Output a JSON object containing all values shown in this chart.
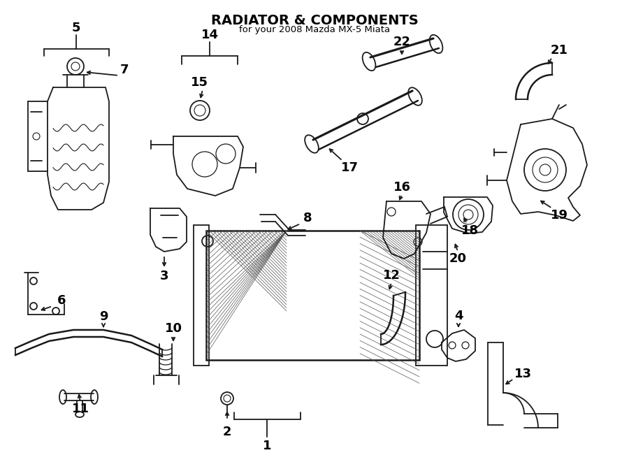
{
  "title": "RADIATOR & COMPONENTS",
  "subtitle": "for your 2008 Mazda MX-5 Miata",
  "bg_color": "#ffffff",
  "line_color": "#1a1a1a",
  "text_color": "#000000",
  "fig_width": 9.0,
  "fig_height": 6.61,
  "dpi": 100
}
